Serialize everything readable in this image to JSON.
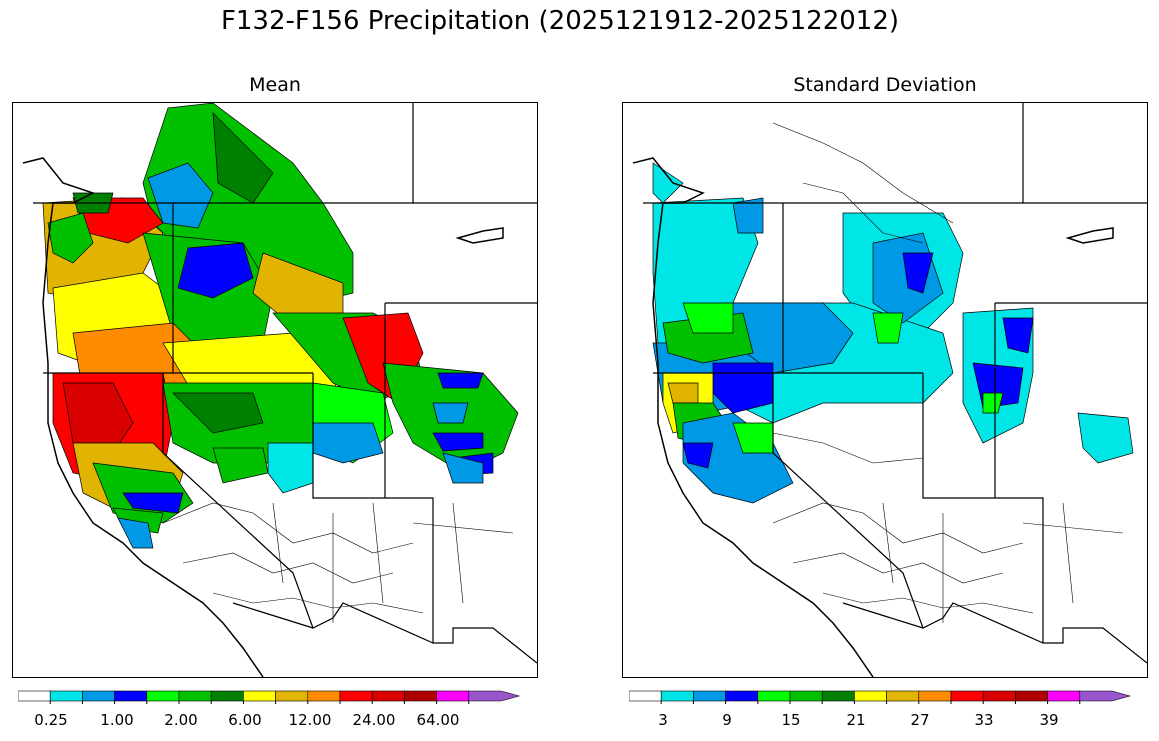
{
  "title": "F132-F156 Precipitation (2025121912-2025122012)",
  "panels": [
    {
      "name": "mean",
      "title": "Mean",
      "colors": [
        "#ffffff",
        "#00e5e5",
        "#0099e6",
        "#0000ff",
        "#00ff00",
        "#00c000",
        "#008000",
        "#ffff00",
        "#e0b400",
        "#ff8c00",
        "#ff0000",
        "#d80000",
        "#b00000",
        "#ff00ff",
        "#9955cc"
      ],
      "tick_labels": [
        "0.25",
        "1.00",
        "2.00",
        "6.00",
        "12.00",
        "24.00",
        "64.00"
      ],
      "extend": "max"
    },
    {
      "name": "std",
      "title": "Standard Deviation",
      "colors": [
        "#ffffff",
        "#00e5e5",
        "#0099e6",
        "#0000ff",
        "#00ff00",
        "#00c000",
        "#008000",
        "#ffff00",
        "#e0b400",
        "#ff8c00",
        "#ff0000",
        "#d80000",
        "#b00000",
        "#ff00ff",
        "#9955cc"
      ],
      "tick_labels": [
        "3",
        "9",
        "15",
        "21",
        "27",
        "33",
        "39"
      ],
      "extend": "max"
    }
  ]
}
